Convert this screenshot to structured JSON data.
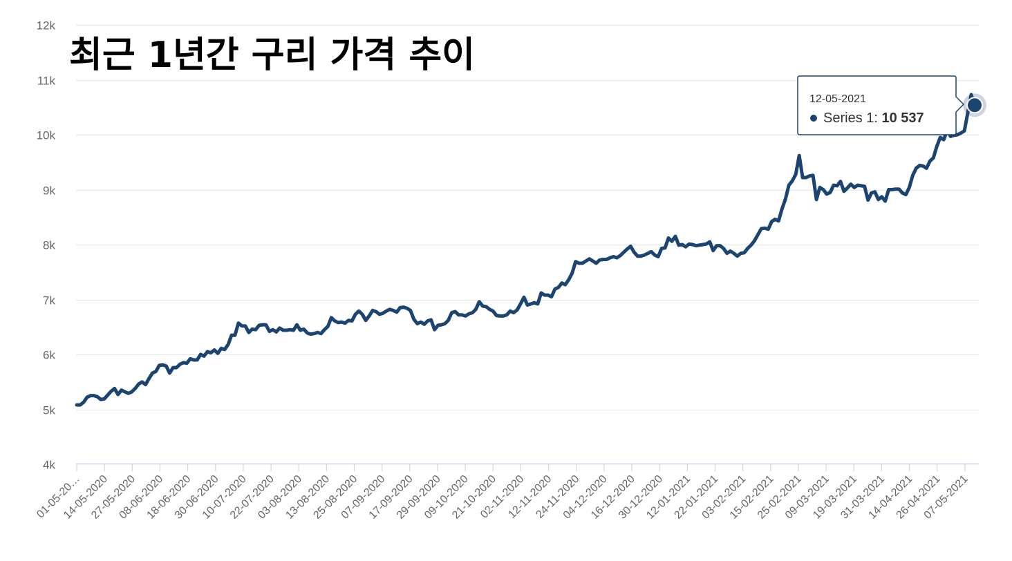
{
  "chart_data": {
    "type": "line",
    "title": "최근 1년간 구리 가격 추이",
    "xlabel": "",
    "ylabel": "",
    "ylim": [
      4000,
      12000
    ],
    "y_ticks": [
      4000,
      5000,
      6000,
      7000,
      8000,
      9000,
      10000,
      11000,
      12000
    ],
    "y_tick_labels": [
      "4k",
      "5k",
      "6k",
      "7k",
      "8k",
      "9k",
      "10k",
      "11k",
      "12k"
    ],
    "x_tick_labels": [
      "01-05-20…",
      "14-05-2020",
      "27-05-2020",
      "08-06-2020",
      "18-06-2020",
      "30-06-2020",
      "10-07-2020",
      "22-07-2020",
      "03-08-2020",
      "13-08-2020",
      "25-08-2020",
      "07-09-2020",
      "17-09-2020",
      "29-09-2020",
      "09-10-2020",
      "21-10-2020",
      "02-11-2020",
      "12-11-2020",
      "24-11-2020",
      "04-12-2020",
      "16-12-2020",
      "30-12-2020",
      "12-01-2021",
      "22-01-2021",
      "03-02-2021",
      "15-02-2021",
      "25-02-2021",
      "09-03-2021",
      "19-03-2021",
      "31-03-2021",
      "14-04-2021",
      "26-04-2021",
      "07-05-2021"
    ],
    "grid": true,
    "legend": "none",
    "line_color": "#1b4470",
    "series": [
      {
        "name": "Series 1",
        "values": [
          5080,
          5080,
          5130,
          5220,
          5250,
          5250,
          5230,
          5180,
          5190,
          5260,
          5330,
          5380,
          5270,
          5350,
          5320,
          5290,
          5320,
          5380,
          5460,
          5500,
          5450,
          5560,
          5660,
          5690,
          5800,
          5810,
          5790,
          5660,
          5760,
          5760,
          5820,
          5850,
          5840,
          5920,
          5900,
          5900,
          6000,
          5970,
          6050,
          6030,
          6080,
          6020,
          6110,
          6090,
          6180,
          6350,
          6350,
          6570,
          6520,
          6520,
          6400,
          6460,
          6450,
          6530,
          6540,
          6540,
          6420,
          6450,
          6410,
          6480,
          6440,
          6440,
          6450,
          6440,
          6540,
          6440,
          6460,
          6390,
          6370,
          6380,
          6400,
          6380,
          6450,
          6510,
          6670,
          6610,
          6580,
          6590,
          6570,
          6620,
          6610,
          6730,
          6790,
          6730,
          6620,
          6700,
          6800,
          6780,
          6730,
          6750,
          6790,
          6820,
          6800,
          6770,
          6850,
          6860,
          6840,
          6800,
          6640,
          6560,
          6590,
          6550,
          6610,
          6630,
          6450,
          6530,
          6540,
          6560,
          6620,
          6760,
          6780,
          6720,
          6720,
          6700,
          6740,
          6760,
          6820,
          6960,
          6880,
          6870,
          6820,
          6790,
          6710,
          6700,
          6700,
          6720,
          6790,
          6760,
          6810,
          6920,
          7040,
          6900,
          6920,
          6940,
          6920,
          7120,
          7080,
          7080,
          7050,
          7190,
          7220,
          7300,
          7270,
          7360,
          7480,
          7690,
          7660,
          7660,
          7700,
          7740,
          7700,
          7660,
          7720,
          7730,
          7730,
          7760,
          7780,
          7760,
          7800,
          7860,
          7920,
          7970,
          7860,
          7790,
          7790,
          7810,
          7840,
          7870,
          7810,
          7780,
          7930,
          7940,
          8120,
          8060,
          8150,
          7990,
          8000,
          7960,
          8010,
          8000,
          7980,
          7990,
          8000,
          8010,
          8050,
          7890,
          7980,
          7980,
          7930,
          7840,
          7880,
          7840,
          7790,
          7840,
          7850,
          7930,
          7990,
          8070,
          8180,
          8290,
          8300,
          8280,
          8420,
          8460,
          8430,
          8650,
          8830,
          9080,
          9160,
          9280,
          9620,
          9220,
          9220,
          9250,
          9260,
          8820,
          9040,
          9000,
          8920,
          8950,
          9080,
          9070,
          9150,
          8970,
          9030,
          9100,
          9040,
          9080,
          9070,
          9060,
          8810,
          8940,
          8960,
          8820,
          8870,
          8790,
          9000,
          9000,
          9010,
          9010,
          8940,
          8910,
          9040,
          9260,
          9390,
          9440,
          9430,
          9390,
          9520,
          9580,
          9790,
          9950,
          9910,
          10080,
          9970,
          9990,
          10000,
          10030,
          10070,
          10400,
          10730,
          10537
        ]
      }
    ],
    "tooltip": {
      "date": "12-05-2021",
      "series_name": "Series 1",
      "separator": ": ",
      "value_text": "10 537"
    }
  }
}
